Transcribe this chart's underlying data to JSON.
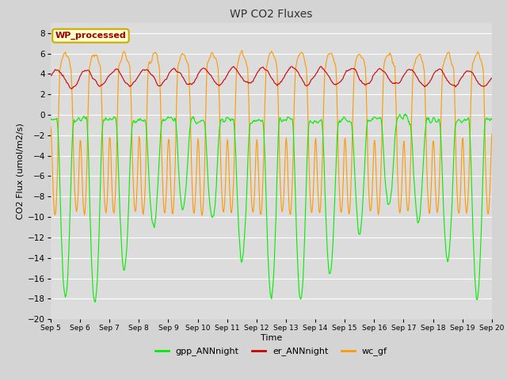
{
  "title": "WP CO2 Fluxes",
  "xlabel": "Time",
  "ylabel_display": "CO2 Flux (umol/m2/s)",
  "ylim": [
    -20,
    9
  ],
  "yticks": [
    -20,
    -18,
    -16,
    -14,
    -12,
    -10,
    -8,
    -6,
    -4,
    -2,
    0,
    2,
    4,
    6,
    8
  ],
  "background_color": "#d4d4d4",
  "plot_bg_color": "#dcdcdc",
  "grid_color": "#ffffff",
  "legend_labels": [
    "gpp_ANNnight",
    "er_ANNnight",
    "wc_gf"
  ],
  "legend_colors": [
    "#00ee00",
    "#cc0000",
    "#ff9900"
  ],
  "annotation_text": "WP_processed",
  "annotation_color": "#990000",
  "annotation_bg": "#ffffcc",
  "annotation_border": "#ccaa00",
  "line_colors": {
    "gpp": "#00ee00",
    "er": "#cc0000",
    "wc": "#ff9900"
  },
  "linewidth": 0.8,
  "num_days": 15,
  "points_per_day": 48
}
